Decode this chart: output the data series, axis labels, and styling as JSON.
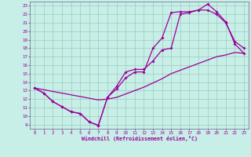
{
  "xlabel": "Windchill (Refroidissement éolien,°C)",
  "xlim": [
    -0.5,
    23.5
  ],
  "ylim": [
    8.5,
    23.5
  ],
  "xticks": [
    0,
    1,
    2,
    3,
    4,
    5,
    6,
    7,
    8,
    9,
    10,
    11,
    12,
    13,
    14,
    15,
    16,
    17,
    18,
    19,
    20,
    21,
    22,
    23
  ],
  "yticks": [
    9,
    10,
    11,
    12,
    13,
    14,
    15,
    16,
    17,
    18,
    19,
    20,
    21,
    22,
    23
  ],
  "bg_color": "#c8eee8",
  "line_color": "#990099",
  "grid_color": "#99ccbb",
  "line1_x": [
    0,
    1,
    2,
    3,
    4,
    5,
    6,
    7,
    8,
    9,
    10,
    11,
    12,
    13,
    14,
    15,
    16,
    17,
    18,
    19,
    20,
    21,
    22,
    23
  ],
  "line1_y": [
    13.3,
    12.7,
    11.7,
    11.1,
    10.5,
    10.3,
    9.3,
    8.9,
    12.2,
    13.2,
    14.5,
    15.2,
    15.2,
    18.0,
    19.2,
    22.2,
    22.3,
    22.3,
    22.5,
    23.2,
    22.3,
    21.1,
    18.5,
    17.4
  ],
  "line2_x": [
    0,
    1,
    2,
    3,
    4,
    5,
    6,
    7,
    8,
    9,
    10,
    11,
    12,
    13,
    14,
    15,
    16,
    17,
    18,
    19,
    20,
    21,
    22,
    23
  ],
  "line2_y": [
    13.3,
    12.7,
    11.7,
    11.1,
    10.5,
    10.3,
    9.3,
    8.9,
    12.2,
    13.5,
    15.2,
    15.5,
    15.5,
    16.5,
    17.8,
    18.0,
    22.0,
    22.2,
    22.5,
    22.5,
    22.0,
    21.0,
    18.8,
    18.0
  ],
  "line3_x": [
    0,
    1,
    2,
    3,
    4,
    5,
    6,
    7,
    8,
    9,
    10,
    11,
    12,
    13,
    14,
    15,
    16,
    17,
    18,
    19,
    20,
    21,
    22,
    23
  ],
  "line3_y": [
    13.3,
    13.1,
    12.9,
    12.7,
    12.5,
    12.3,
    12.1,
    11.9,
    12.0,
    12.2,
    12.6,
    13.0,
    13.4,
    13.9,
    14.4,
    15.0,
    15.4,
    15.8,
    16.2,
    16.6,
    17.0,
    17.2,
    17.5,
    17.4
  ]
}
